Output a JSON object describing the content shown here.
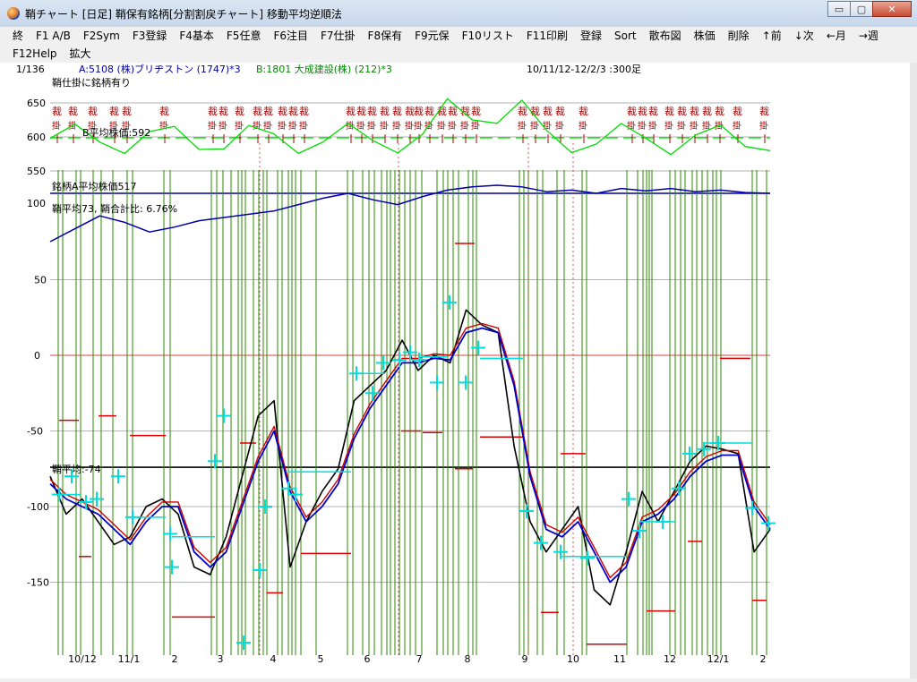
{
  "window": {
    "title": "鞘チャート [日足] 鞘保有銘柄[分割割戻チャート] 移動平均逆順法",
    "minimize": "▭",
    "restore": "▢",
    "close": "✕"
  },
  "menu": {
    "row1": [
      "終",
      "F1 A/B",
      "F2Sym",
      "F3登録",
      "F4基本",
      "F5任意",
      "F6注目",
      "F7仕掛",
      "F8保有",
      "F9元保",
      "F10リスト",
      "F11印刷",
      "登録",
      "Sort",
      "散布図",
      "株価",
      "削除",
      "↑前",
      "↓次",
      "←月",
      "→週"
    ],
    "row2": [
      "F12Help",
      "拡大"
    ]
  },
  "info": {
    "counter": "1/136",
    "pair_a": "A:5108 (株)ブリヂストン (1747)*3",
    "pair_b": "B:1801 大成建設(株) (212)*3",
    "range": "10/11/12-12/2/3 :300足",
    "flag": "鞘仕掛に銘柄有り",
    "b_average": "B平均株価:592",
    "a_average": "銘柄A平均株価517",
    "spread_average": "鞘平均73, 鞘合計比: 6.76%",
    "spread_mean_line": "鞘平均:-74"
  },
  "colors": {
    "price_a": "#0000aa",
    "price_b": "#00dd00",
    "spread": "#000000",
    "ma_red": "#cc0000",
    "ma_blue": "#0000cc",
    "signal_green": "#008800",
    "marker": "#00dddd",
    "level_red": "#dd0000",
    "signal_text": "#aa0000"
  },
  "chart_data": {
    "type": "line",
    "upper_panel": {
      "yticks": [
        "650",
        "600",
        "550",
        "100"
      ],
      "series": [
        {
          "values": [
            598,
            597,
            598,
            596,
            597,
            598,
            597,
            596,
            598,
            596,
            597,
            596,
            598,
            597,
            598,
            596,
            597,
            598,
            596,
            597,
            598,
            597,
            596,
            598,
            597,
            596,
            598,
            597,
            596,
            598
          ]
        },
        {
          "values": [
            452,
            468,
            484,
            476,
            464,
            470,
            478,
            482,
            486,
            490,
            498,
            506,
            512,
            504,
            498,
            508,
            516,
            520,
            522,
            520,
            514,
            516,
            512,
            518,
            515,
            518,
            514,
            516,
            513,
            512
          ]
        }
      ]
    },
    "lower_panel": {
      "ylim": [
        -175,
        80
      ],
      "yticks": [
        50,
        0,
        -50,
        -100,
        -150
      ],
      "mean_line": -74,
      "x_labels": [
        "10/12",
        "11/1",
        "2",
        "3",
        "4",
        "5",
        "6",
        "7",
        "8",
        "9",
        "10",
        "11",
        "12",
        "12/1",
        "2"
      ],
      "series": [
        {
          "values": [
            -80,
            -105,
            -95,
            -110,
            -125,
            -120,
            -100,
            -95,
            -105,
            -140,
            -145,
            -120,
            -80,
            -40,
            -30,
            -140,
            -110,
            -90,
            -75,
            -30,
            -20,
            -10,
            10,
            -10,
            0,
            -5,
            30,
            20,
            15,
            -60,
            -110,
            -130,
            -115,
            -100,
            -155,
            -165,
            -130,
            -90,
            -110,
            -90,
            -70,
            -60,
            -62,
            -65,
            -130,
            -115
          ]
        },
        {
          "values": [
            -85,
            -95,
            -100,
            -105,
            -115,
            -125,
            -110,
            -100,
            -100,
            -130,
            -140,
            -130,
            -100,
            -70,
            -50,
            -90,
            -110,
            -100,
            -85,
            -55,
            -35,
            -20,
            -5,
            -5,
            -2,
            -3,
            15,
            18,
            15,
            -20,
            -80,
            -115,
            -120,
            -110,
            -130,
            -150,
            -140,
            -110,
            -105,
            -95,
            -80,
            -70,
            -66,
            -66,
            -100,
            -115
          ]
        }
      ]
    }
  }
}
